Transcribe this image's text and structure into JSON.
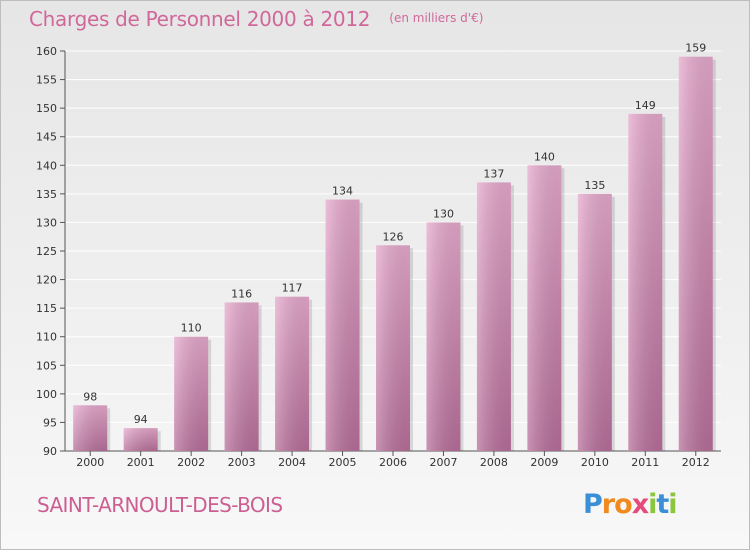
{
  "title": "Charges de Personnel 2000 à 2012",
  "subtitle": "(en milliers d'€)",
  "commune": "SAINT-ARNOULT-DES-BOIS",
  "logo": {
    "text": "Proxiti",
    "letters": [
      "P",
      "r",
      "o",
      "x",
      "i",
      "t",
      "i"
    ]
  },
  "colors": {
    "bar": "#dd9bc3",
    "title": "#d0689a",
    "grid": "#ffffff"
  },
  "chart_data": {
    "type": "bar",
    "categories": [
      "2000",
      "2001",
      "2002",
      "2003",
      "2004",
      "2005",
      "2006",
      "2007",
      "2008",
      "2009",
      "2010",
      "2011",
      "2012"
    ],
    "values": [
      98,
      94,
      110,
      116,
      117,
      134,
      126,
      130,
      137,
      140,
      135,
      149,
      159
    ],
    "title": "Charges de Personnel 2000 à 2012",
    "subtitle": "(en milliers d'€)",
    "ylim": [
      90,
      160
    ],
    "yticks": [
      90,
      95,
      100,
      105,
      110,
      115,
      120,
      125,
      130,
      135,
      140,
      145,
      150,
      155,
      160
    ],
    "grid": true,
    "data_labels": true
  }
}
